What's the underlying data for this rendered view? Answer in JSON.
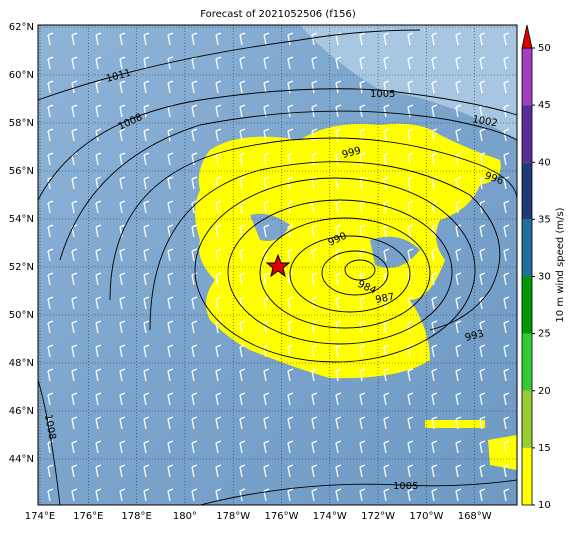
{
  "title": "Forecast of 2021052506 (f156)",
  "lat_labels": [
    "62°N",
    "60°N",
    "58°N",
    "56°N",
    "54°N",
    "52°N",
    "50°N",
    "48°N",
    "46°N",
    "44°N"
  ],
  "lon_labels": [
    "174°E",
    "176°E",
    "178°E",
    "180°",
    "178°W",
    "176°W",
    "174°W",
    "172°W",
    "170°W",
    "168°W"
  ],
  "contour_labels": [
    "1011",
    "1008",
    "1005",
    "1002",
    "999",
    "996",
    "990",
    "984",
    "987",
    "993",
    "1008",
    "1005"
  ],
  "colorbar": {
    "label": "10 m wind speed (m/s)",
    "lim": [
      10,
      50
    ],
    "ticks": [
      10,
      15,
      20,
      25,
      30,
      35,
      40,
      45,
      50
    ],
    "colors": [
      "#ffff00",
      "#9acd32",
      "#32cd32",
      "#009a00",
      "#1f6f9f",
      "#203a78",
      "#5a2d96",
      "#a23fbf"
    ],
    "extend_color": "#e00000"
  }
}
